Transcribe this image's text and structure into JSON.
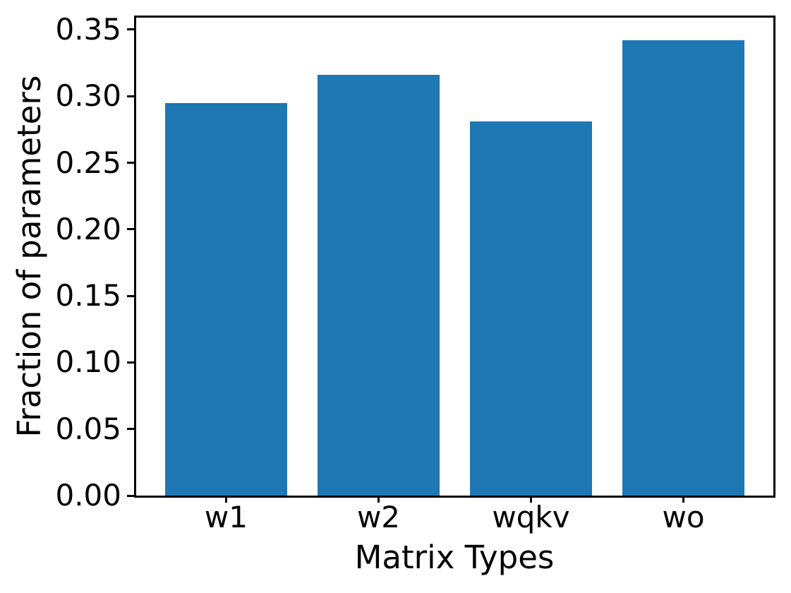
{
  "chart_data": {
    "type": "bar",
    "title": "",
    "xlabel": "Matrix Types",
    "ylabel": "Fraction of parameters",
    "categories": [
      "w1",
      "w2",
      "wqkv",
      "wo"
    ],
    "values": [
      0.295,
      0.316,
      0.281,
      0.342
    ],
    "ylim": [
      0,
      0.359
    ],
    "yticks": [
      0.0,
      0.05,
      0.1,
      0.15,
      0.2,
      0.25,
      0.3,
      0.35
    ],
    "ytick_labels": [
      "0.00",
      "0.05",
      "0.10",
      "0.15",
      "0.20",
      "0.25",
      "0.30",
      "0.35"
    ],
    "bar_color": "#1f77b4",
    "axis_color": "#000000",
    "grid": false,
    "legend": null
  }
}
